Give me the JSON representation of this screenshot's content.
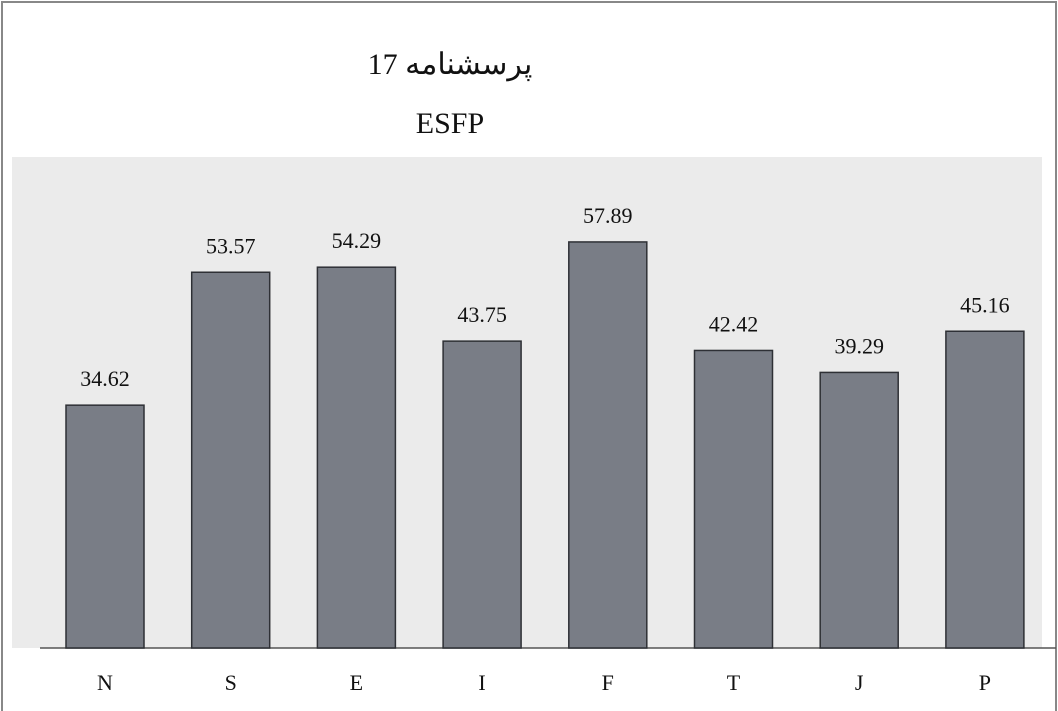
{
  "chart_data": {
    "type": "bar",
    "title": "پرسشنامه 17",
    "subtitle": "ESFP",
    "categories": [
      "N",
      "S",
      "E",
      "I",
      "F",
      "T",
      "J",
      "P"
    ],
    "values": [
      34.62,
      53.57,
      54.29,
      43.75,
      57.89,
      42.42,
      39.29,
      45.16
    ],
    "color": "#797d86",
    "ylim": [
      0,
      70
    ]
  }
}
